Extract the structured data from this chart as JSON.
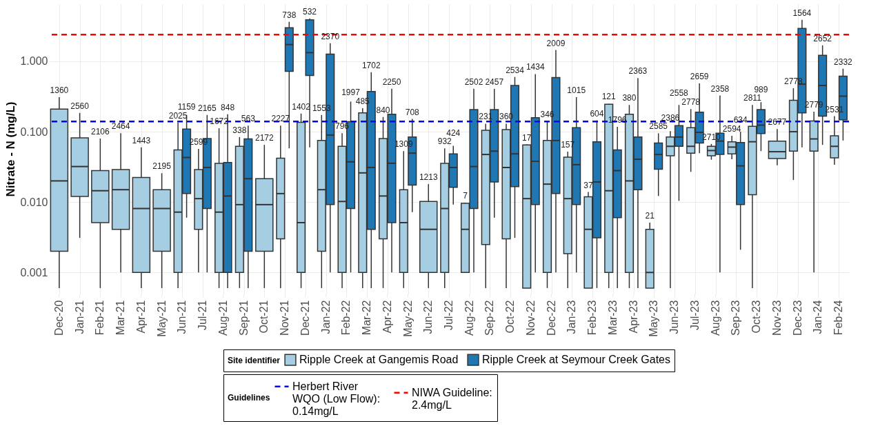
{
  "chart_data": {
    "type": "box",
    "ylabel": "Nitrate - N (mg/L)",
    "log": true,
    "ylim": [
      0.0005,
      6.5
    ],
    "yticks": [
      0.001,
      {
        "value": 0.01,
        "label": "0.010"
      },
      {
        "value": 0.1,
        "label": "0.100"
      },
      {
        "value": 1,
        "label": "1.000"
      }
    ],
    "grid": true,
    "legend": "bottom",
    "legend_title": "Site identifier",
    "categories": [
      "Dec-20",
      "Jan-21",
      "Feb-21",
      "Mar-21",
      "Apr-21",
      "May-21",
      "Jun-21",
      "Jul-21",
      "Aug-21",
      "Sep-21",
      "Oct-21",
      "Nov-21",
      "Dec-21",
      "Jan-22",
      "Feb-22",
      "Mar-22",
      "Apr-22",
      "May-22",
      "Jun-22",
      "Jul-22",
      "Aug-22",
      "Sep-22",
      "Oct-22",
      "Nov-22",
      "Dec-22",
      "Jan-23",
      "Feb-23",
      "Mar-23",
      "Apr-23",
      "May-23",
      "Jun-23",
      "Jul-23",
      "Aug-23",
      "Sep-23",
      "Oct-23",
      "Nov-23",
      "Dec-23",
      "Jan-24",
      "Feb-24"
    ],
    "series": [
      {
        "name": "Ripple Creek at Gangemis Road",
        "color": "#a6cee3",
        "value_labels": [
          "1360",
          "2560",
          "2106",
          "2464",
          "1443",
          "2195",
          "2025",
          "2599",
          "1672",
          "338",
          "2172",
          "2227",
          "1402",
          "1553",
          "796",
          "485",
          "840",
          "1309",
          "1213",
          "932",
          "7",
          "231",
          "360",
          "17",
          "346",
          "157",
          "37",
          "121",
          "380",
          "21",
          "2386",
          "2778",
          "2710",
          "2594",
          "2811",
          "2677",
          "2778",
          "2779",
          "2531"
        ],
        "boxes": [
          {
            "low": 0.0006,
            "q1": 0.002,
            "median": 0.02,
            "q3": 0.21,
            "high": 0.31
          },
          {
            "low": 0.0031,
            "q1": 0.012,
            "median": 0.032,
            "q3": 0.082,
            "high": 0.185
          },
          {
            "low": 0.0006,
            "q1": 0.0051,
            "median": 0.0145,
            "q3": 0.028,
            "high": 0.08
          },
          {
            "low": 0.001,
            "q1": 0.0041,
            "median": 0.015,
            "q3": 0.029,
            "high": 0.095
          },
          {
            "low": 0.0006,
            "q1": 0.001,
            "median": 0.0081,
            "q3": 0.0224,
            "high": 0.06
          },
          {
            "low": 0.0006,
            "q1": 0.002,
            "median": 0.0081,
            "q3": 0.015,
            "high": 0.0257
          },
          {
            "low": 0.0006,
            "q1": 0.001,
            "median": 0.0072,
            "q3": 0.055,
            "high": 0.135
          },
          {
            "low": 0.001,
            "q1": 0.0041,
            "median": 0.0112,
            "q3": 0.029,
            "high": 0.057
          },
          {
            "low": 0.0006,
            "q1": 0.001,
            "median": 0.0072,
            "q3": 0.0356,
            "high": 0.112
          },
          {
            "low": 0.0006,
            "q1": 0.001,
            "median": 0.0092,
            "q3": 0.062,
            "high": 0.084
          },
          {
            "low": 0.0006,
            "q1": 0.002,
            "median": 0.0092,
            "q3": 0.0215,
            "high": 0.065
          },
          {
            "low": 0.0006,
            "q1": 0.003,
            "median": 0.0132,
            "q3": 0.042,
            "high": 0.122
          },
          {
            "low": 0.0006,
            "q1": 0.001,
            "median": 0.0051,
            "q3": 0.136,
            "high": 0.181
          },
          {
            "low": 0.0006,
            "q1": 0.002,
            "median": 0.015,
            "q3": 0.075,
            "high": 0.173
          },
          {
            "low": 0.0006,
            "q1": 0.001,
            "median": 0.0102,
            "q3": 0.062,
            "high": 0.095
          },
          {
            "low": 0.0006,
            "q1": 0.001,
            "median": 0.026,
            "q3": 0.185,
            "high": 0.216
          },
          {
            "low": 0.0006,
            "q1": 0.003,
            "median": 0.0122,
            "q3": 0.08,
            "high": 0.162
          },
          {
            "low": 0.0006,
            "q1": 0.001,
            "median": 0.0051,
            "q3": 0.015,
            "high": 0.053
          },
          {
            "low": 0.0006,
            "q1": 0.001,
            "median": 0.0041,
            "q3": 0.0102,
            "high": 0.018
          },
          {
            "low": 0.0006,
            "q1": 0.001,
            "median": 0.0081,
            "q3": 0.0356,
            "high": 0.058
          },
          {
            "low": 0.001,
            "q1": 0.001,
            "median": 0.0041,
            "q3": 0.0096,
            "high": 0.0098
          },
          {
            "low": 0.0006,
            "q1": 0.0025,
            "median": 0.0475,
            "q3": 0.105,
            "high": 0.13
          },
          {
            "low": 0.0006,
            "q1": 0.003,
            "median": 0.031,
            "q3": 0.107,
            "high": 0.13
          },
          {
            "low": 0.0006,
            "q1": 0.0006,
            "median": 0.0112,
            "q3": 0.065,
            "high": 0.066
          },
          {
            "low": 0.0006,
            "q1": 0.001,
            "median": 0.018,
            "q3": 0.075,
            "high": 0.139
          },
          {
            "low": 0.0006,
            "q1": 0.00185,
            "median": 0.0112,
            "q3": 0.0435,
            "high": 0.052
          },
          {
            "low": 0.0006,
            "q1": 0.0006,
            "median": 0.0041,
            "q3": 0.0119,
            "high": 0.0139
          },
          {
            "low": 0.0006,
            "q1": 0.001,
            "median": 0.0145,
            "q3": 0.246,
            "high": 0.25
          },
          {
            "low": 0.0006,
            "q1": 0.001,
            "median": 0.02,
            "q3": 0.177,
            "high": 0.24
          },
          {
            "low": 0.0006,
            "q1": 0.0006,
            "median": 0.001,
            "q3": 0.0041,
            "high": 0.0051
          },
          {
            "low": 0.0006,
            "q1": 0.0454,
            "median": 0.062,
            "q3": 0.084,
            "high": 0.102
          },
          {
            "low": 0.0269,
            "q1": 0.0496,
            "median": 0.062,
            "q3": 0.114,
            "high": 0.21
          },
          {
            "low": 0.04,
            "q1": 0.0454,
            "median": 0.054,
            "q3": 0.062,
            "high": 0.067
          },
          {
            "low": 0.0406,
            "q1": 0.0485,
            "median": 0.0604,
            "q3": 0.072,
            "high": 0.0877
          },
          {
            "low": 0.0006,
            "q1": 0.0127,
            "median": 0.072,
            "q3": 0.119,
            "high": 0.24
          },
          {
            "low": 0.0334,
            "q1": 0.0416,
            "median": 0.052,
            "q3": 0.0736,
            "high": 0.109
          },
          {
            "low": 0.0206,
            "q1": 0.053,
            "median": 0.1,
            "q3": 0.28,
            "high": 0.416
          },
          {
            "low": 0.001,
            "q1": 0.053,
            "median": 0.079,
            "q3": 0.142,
            "high": 0.193
          },
          {
            "low": 0.034,
            "q1": 0.0426,
            "median": 0.062,
            "q3": 0.0877,
            "high": 0.166
          }
        ]
      },
      {
        "name": "Ripple Creek at Seymour Creek Gates",
        "color": "#1f78b4",
        "value_labels": [
          null,
          null,
          null,
          null,
          null,
          null,
          "1159",
          "2165",
          "848",
          "563",
          null,
          "738",
          "532",
          "2370",
          "1997",
          "1702",
          "2250",
          "708",
          null,
          "424",
          "2502",
          "2457",
          "2534",
          "1434",
          "2009",
          "1015",
          "604",
          "1796",
          "2363",
          "2585",
          "2558",
          "2659",
          "2358",
          "634",
          "989",
          null,
          "1564",
          "2652",
          "2332"
        ],
        "boxes": [
          null,
          null,
          null,
          null,
          null,
          null,
          {
            "low": 0.006,
            "q1": 0.0132,
            "median": 0.043,
            "q3": 0.109,
            "high": 0.173
          },
          {
            "low": 0.001,
            "q1": 0.0081,
            "median": 0.031,
            "q3": 0.08,
            "high": 0.173
          },
          {
            "low": 0.0006,
            "q1": 0.001,
            "median": 0.0122,
            "q3": 0.0365,
            "high": 0.177
          },
          {
            "low": 0.0006,
            "q1": 0.002,
            "median": 0.0215,
            "q3": 0.079,
            "high": 0.122
          },
          null,
          {
            "low": 0.058,
            "q1": 0.72,
            "median": 1.73,
            "q3": 3.0,
            "high": 3.65
          },
          {
            "low": 0.06,
            "q1": 0.63,
            "median": 1.33,
            "q3": 3.9,
            "high": 4.07
          },
          {
            "low": 0.001,
            "q1": 0.0092,
            "median": 0.0896,
            "q3": 1.27,
            "high": 1.81
          },
          {
            "low": 0.001,
            "q1": 0.0081,
            "median": 0.0373,
            "q3": 0.139,
            "high": 0.268
          },
          {
            "low": 0.0006,
            "q1": 0.0041,
            "median": 0.031,
            "q3": 0.372,
            "high": 0.7
          },
          {
            "low": 0.001,
            "q1": 0.0051,
            "median": 0.0356,
            "q3": 0.177,
            "high": 0.407
          },
          {
            "low": 0.0072,
            "q1": 0.0174,
            "median": 0.0496,
            "q3": 0.084,
            "high": 0.152
          },
          null,
          {
            "low": 0.0092,
            "q1": 0.0162,
            "median": 0.031,
            "q3": 0.0485,
            "high": 0.063
          },
          {
            "low": 0.001,
            "q1": 0.0081,
            "median": 0.032,
            "q3": 0.206,
            "high": 0.407
          },
          {
            "low": 0.006,
            "q1": 0.0193,
            "median": 0.053,
            "q3": 0.206,
            "high": 0.407
          },
          {
            "low": 0.0031,
            "q1": 0.0166,
            "median": 0.0485,
            "q3": 0.454,
            "high": 0.6
          },
          {
            "low": 0.001,
            "q1": 0.0092,
            "median": 0.038,
            "q3": 0.158,
            "high": 0.66
          },
          {
            "low": 0.001,
            "q1": 0.0132,
            "median": 0.075,
            "q3": 0.59,
            "high": 1.45
          },
          {
            "low": 0.001,
            "q1": 0.0092,
            "median": 0.034,
            "q3": 0.114,
            "high": 0.31
          },
          {
            "low": 0.0006,
            "q1": 0.0031,
            "median": 0.0193,
            "q3": 0.072,
            "high": 0.145
          },
          {
            "low": 0.0006,
            "q1": 0.006,
            "median": 0.028,
            "q3": 0.055,
            "high": 0.117
          },
          {
            "low": 0.0006,
            "q1": 0.015,
            "median": 0.0406,
            "q3": 0.084,
            "high": 0.58
          },
          {
            "low": 0.0122,
            "q1": 0.0293,
            "median": 0.0475,
            "q3": 0.069,
            "high": 0.095
          },
          {
            "low": 0.0104,
            "q1": 0.062,
            "median": 0.084,
            "q3": 0.122,
            "high": 0.24
          },
          {
            "low": 0.0496,
            "q1": 0.069,
            "median": 0.098,
            "q3": 0.189,
            "high": 0.485
          },
          {
            "low": 0.001,
            "q1": 0.0475,
            "median": 0.0736,
            "q3": 0.095,
            "high": 0.327
          },
          {
            "low": 0.0021,
            "q1": 0.0092,
            "median": 0.0327,
            "q3": 0.0704,
            "high": 0.1
          },
          {
            "low": 0.053,
            "q1": 0.094,
            "median": 0.124,
            "q3": 0.206,
            "high": 0.263
          },
          null,
          {
            "low": 0.06,
            "q1": 0.185,
            "median": 0.474,
            "q3": 2.93,
            "high": 3.9
          },
          {
            "low": 0.065,
            "q1": 0.166,
            "median": 0.454,
            "q3": 1.22,
            "high": 1.69
          },
          {
            "low": 0.075,
            "q1": 0.148,
            "median": 0.32,
            "q3": 0.617,
            "high": 0.786
          }
        ]
      }
    ],
    "ref_lines": [
      {
        "axis": "y",
        "value": 0.14,
        "label": "Herbert River WQO (Low Flow): 0.14mg/L",
        "color": "#0000ff",
        "line_style": "dashed"
      },
      {
        "axis": "y",
        "value": 2.4,
        "label": "NIWA Guideline: 2.4mg/L",
        "color": "#ff0000",
        "line_style": "dashed"
      }
    ],
    "annotations": [
      "Guidelines"
    ]
  }
}
